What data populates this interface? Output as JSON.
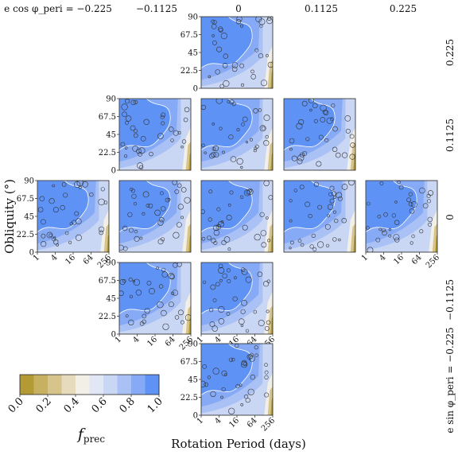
{
  "chart_data": {
    "type": "heatmap",
    "xlabel": "Rotation Period (days)",
    "ylabel": "Obliquity (°)",
    "x_scale": "log2",
    "xlim": [
      1,
      256
    ],
    "ylim": [
      0,
      90
    ],
    "x_ticks": [
      "1",
      "4",
      "16",
      "64",
      "256"
    ],
    "y_ticks": [
      "0",
      "22.5",
      "45",
      "67.5",
      "90"
    ],
    "column_labels": [
      "e cos φ_peri = −0.225",
      "−0.1125",
      "0",
      "0.1125",
      "0.225"
    ],
    "row_labels": [
      "0.225",
      "0.1125",
      "0",
      "−0.1125",
      "e sin φ_peri = −0.225"
    ],
    "panels": [
      {
        "e_cos": 0,
        "e_sin": 0.225
      },
      {
        "e_cos": -0.1125,
        "e_sin": 0.1125
      },
      {
        "e_cos": 0,
        "e_sin": 0.1125
      },
      {
        "e_cos": 0.1125,
        "e_sin": 0.1125
      },
      {
        "e_cos": -0.225,
        "e_sin": 0
      },
      {
        "e_cos": -0.1125,
        "e_sin": 0
      },
      {
        "e_cos": 0,
        "e_sin": 0
      },
      {
        "e_cos": 0.1125,
        "e_sin": 0
      },
      {
        "e_cos": 0.225,
        "e_sin": 0
      },
      {
        "e_cos": -0.1125,
        "e_sin": -0.1125
      },
      {
        "e_cos": 0,
        "e_sin": -0.1125
      },
      {
        "e_cos": 0,
        "e_sin": -0.225
      }
    ],
    "colorbar": {
      "label": "f_prec",
      "ticks": [
        "0.0",
        "0.2",
        "0.4",
        "0.6",
        "0.8",
        "1.0"
      ],
      "range": [
        0,
        1
      ],
      "colors": [
        "#b39a35",
        "#c7b060",
        "#d6c48a",
        "#e6dbbc",
        "#f2efe6",
        "#e2e7f5",
        "#c9d6f4",
        "#a9c1f5",
        "#86aaf6",
        "#5e92f5"
      ]
    }
  }
}
